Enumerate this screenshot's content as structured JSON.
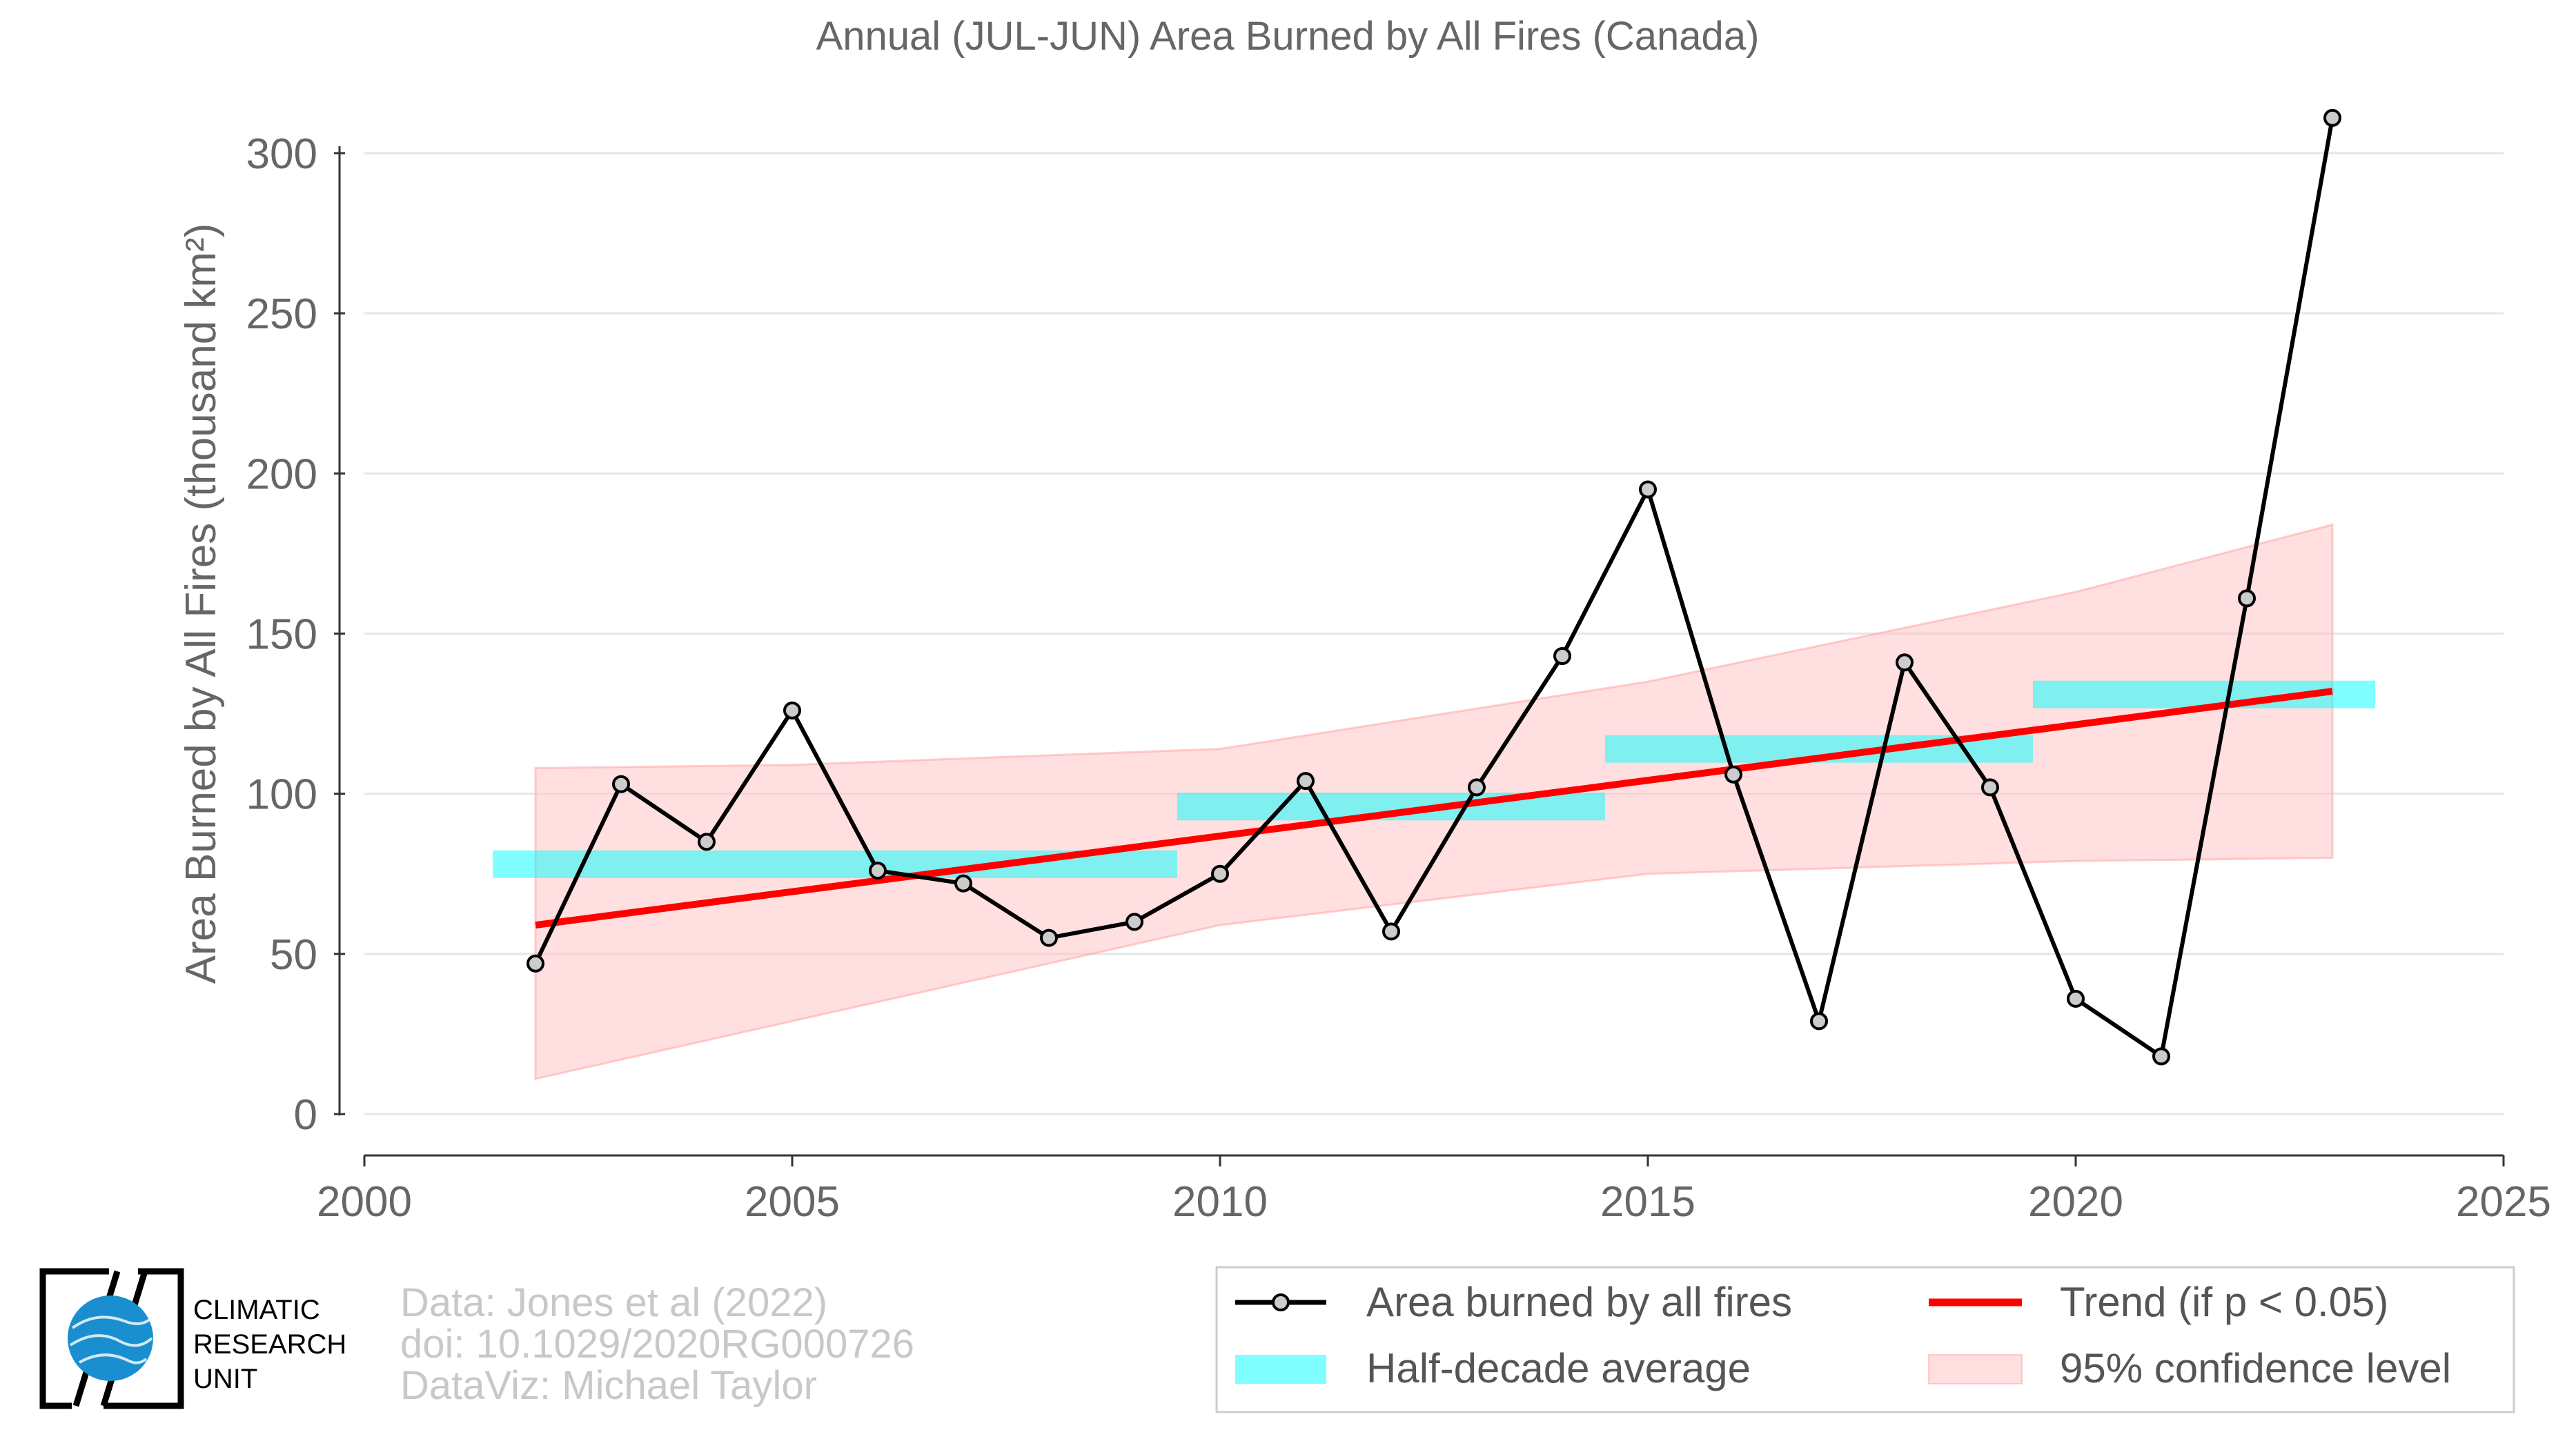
{
  "chart_data": {
    "type": "line",
    "title": "Annual (JUL-JUN) Area Burned by All Fires (Canada)",
    "ylabel": "Area Burned by All Fires (thousand km²)",
    "xlabel": "",
    "xlim": [
      2000,
      2025
    ],
    "ylim": [
      0,
      300
    ],
    "x_ticks": [
      2000,
      2005,
      2010,
      2015,
      2020,
      2025
    ],
    "y_ticks": [
      0,
      50,
      100,
      150,
      200,
      250,
      300
    ],
    "grid": "horizontal",
    "legend_position": "bottom-right",
    "series": [
      {
        "name": "Area burned by all fires",
        "color": "#000000",
        "x": [
          2002,
          2003,
          2004,
          2005,
          2006,
          2007,
          2008,
          2009,
          2010,
          2011,
          2012,
          2013,
          2014,
          2015,
          2016,
          2017,
          2018,
          2019,
          2020,
          2021,
          2022,
          2023
        ],
        "y": [
          47,
          103,
          85,
          126,
          76,
          72,
          55,
          60,
          75,
          104,
          57,
          102,
          143,
          195,
          106,
          29,
          141,
          102,
          36,
          18,
          161,
          311
        ]
      }
    ],
    "half_decade_average": {
      "name": "Half-decade average",
      "color": "#00FFFF",
      "segments": [
        {
          "x0": 2001.5,
          "x1": 2004.5,
          "y": 78
        },
        {
          "x0": 2004.5,
          "x1": 2009.5,
          "y": 78
        },
        {
          "x0": 2009.5,
          "x1": 2014.5,
          "y": 96
        },
        {
          "x0": 2014.5,
          "x1": 2019.5,
          "y": 114
        },
        {
          "x0": 2019.5,
          "x1": 2023.5,
          "y": 131
        }
      ]
    },
    "trend": {
      "name": "Trend (if p < 0.05)",
      "color": "#FF0000",
      "x": [
        2002,
        2023
      ],
      "y": [
        59,
        132
      ]
    },
    "confidence_band": {
      "name": "95% confidence level",
      "color": "#FFC0C0",
      "x": [
        2002,
        2005,
        2010,
        2015,
        2020,
        2023
      ],
      "upper": [
        108,
        109,
        114,
        135,
        163,
        184
      ],
      "lower": [
        11,
        29,
        59,
        75,
        79,
        80
      ]
    }
  },
  "credits": {
    "line1": "Data: Jones et al (2022)",
    "line2": "doi: 10.1029/2020RG000726",
    "line3": "DataViz: Michael Taylor"
  },
  "logo": {
    "line1": "CLIMATIC",
    "line2": "RESEARCH",
    "line3": "UNIT"
  }
}
